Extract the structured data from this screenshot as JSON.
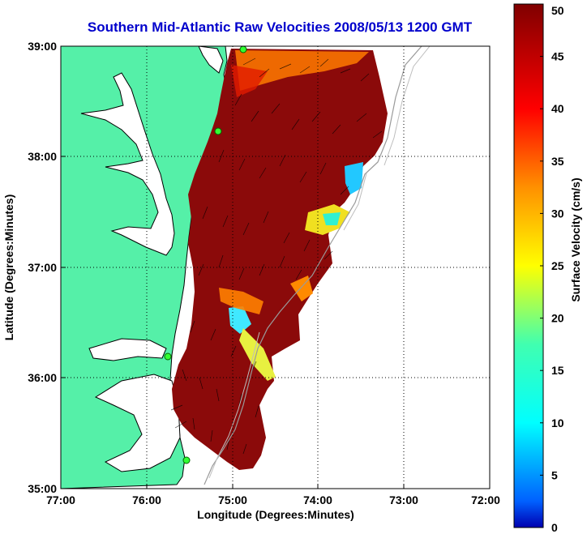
{
  "title": "Southern Mid-Atlantic Raw Velocities 2008/05/13 1200 GMT",
  "xlabel": "Longitude (Degrees:Minutes)",
  "ylabel": "Latitude (Degrees:Minutes)",
  "colorbar_label": "Surface Velocity (cm/s)",
  "x_ticks": [
    "77:00",
    "76:00",
    "75:00",
    "74:00",
    "73:00",
    "72:00"
  ],
  "y_ticks": [
    "39:00",
    "38:00",
    "37:00",
    "36:00",
    "35:00"
  ],
  "colorbar_ticks": [
    "0",
    "5",
    "10",
    "15",
    "20",
    "25",
    "30",
    "35",
    "40",
    "45",
    "50"
  ],
  "colors": {
    "title": "#0000cc",
    "land": "#55f0a8",
    "water": "#ffffff",
    "field_dominant": "#8b0a0a"
  },
  "chart_data": {
    "type": "heatmap",
    "title": "Southern Mid-Atlantic Raw Velocities 2008/05/13 1200 GMT",
    "xlabel": "Longitude (Degrees:Minutes)",
    "ylabel": "Latitude (Degrees:Minutes)",
    "xlim": [
      -77,
      -72
    ],
    "ylim": [
      35,
      39
    ],
    "colorbar": {
      "label": "Surface Velocity (cm/s)",
      "range": [
        0,
        50
      ],
      "colormap": "jet"
    },
    "grid": true,
    "stations": [
      {
        "lon": -74.88,
        "lat": 38.97
      },
      {
        "lon": -75.1,
        "lat": 38.23
      },
      {
        "lon": -75.73,
        "lat": 36.18
      },
      {
        "lon": -75.52,
        "lat": 35.25
      }
    ]
  }
}
